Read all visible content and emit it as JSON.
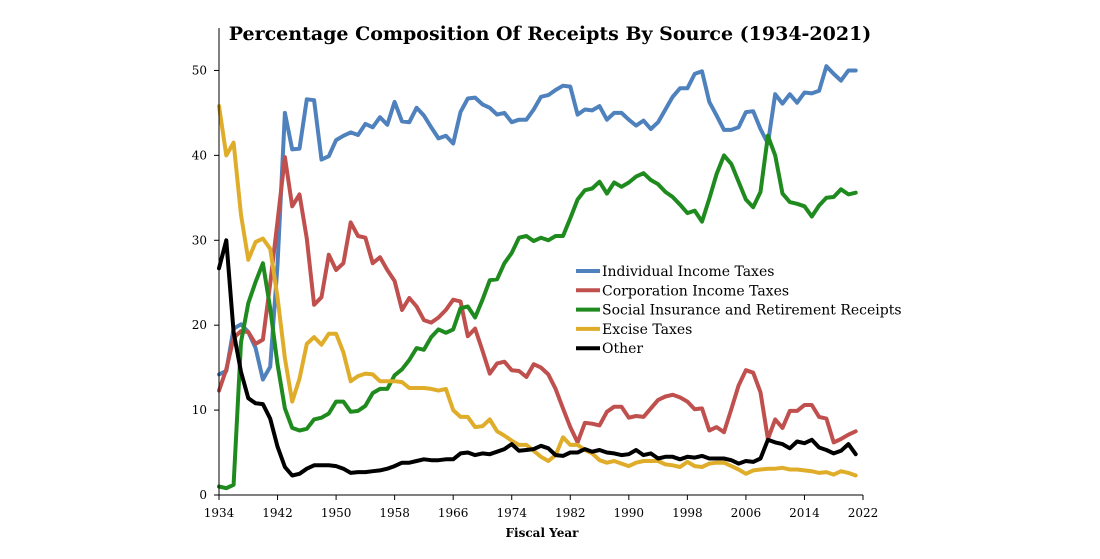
{
  "chart_data": {
    "type": "line",
    "title": "Percentage Composition Of Receipts By Source (1934-2021)",
    "xlabel": "Fiscal Year",
    "ylabel": "",
    "xlim": [
      1934,
      2022
    ],
    "ylim": [
      0,
      55
    ],
    "xticks": [
      1934,
      1942,
      1950,
      1958,
      1966,
      1974,
      1982,
      1990,
      1998,
      2006,
      2014,
      2022
    ],
    "yticks": [
      0,
      10,
      20,
      30,
      40,
      50
    ],
    "grid": false,
    "legend_position": "center-right",
    "series": [
      {
        "name": "Individual Income Taxes",
        "color": "#4F81BD",
        "x": [
          1934,
          1935,
          1936,
          1937,
          1938,
          1939,
          1940,
          1941,
          1942,
          1943,
          1944,
          1945,
          1946,
          1947,
          1948,
          1949,
          1950,
          1951,
          1952,
          1953,
          1954,
          1955,
          1956,
          1957,
          1958,
          1959,
          1960,
          1961,
          1962,
          1963,
          1964,
          1965,
          1966,
          1967,
          1968,
          1969,
          1970,
          1971,
          1972,
          1973,
          1974,
          1975,
          1976,
          1977,
          1978,
          1979,
          1980,
          1981,
          1982,
          1983,
          1984,
          1985,
          1986,
          1987,
          1988,
          1989,
          1990,
          1991,
          1992,
          1993,
          1994,
          1995,
          1996,
          1997,
          1998,
          1999,
          2000,
          2001,
          2002,
          2003,
          2004,
          2005,
          2006,
          2007,
          2008,
          2009,
          2010,
          2011,
          2012,
          2013,
          2014,
          2015,
          2016,
          2017,
          2018,
          2019,
          2020,
          2021
        ],
        "values": [
          14.2,
          14.6,
          19.6,
          20.1,
          19.2,
          17.3,
          13.6,
          15.1,
          27.1,
          45.0,
          40.7,
          40.8,
          46.6,
          46.5,
          39.5,
          39.9,
          41.8,
          42.3,
          42.7,
          42.4,
          43.7,
          43.3,
          44.5,
          43.6,
          46.3,
          44.0,
          43.9,
          45.6,
          44.7,
          43.3,
          42.0,
          42.3,
          41.4,
          45.1,
          46.7,
          46.8,
          46.0,
          45.6,
          44.8,
          45.0,
          43.9,
          44.2,
          44.2,
          45.4,
          46.9,
          47.1,
          47.7,
          48.2,
          48.1,
          44.8,
          45.4,
          45.3,
          45.8,
          44.2,
          45.0,
          45.0,
          44.2,
          43.5,
          44.1,
          43.1,
          43.9,
          45.4,
          46.9,
          47.9,
          47.9,
          49.6,
          49.9,
          46.3,
          44.7,
          43.0,
          43.0,
          43.3,
          45.1,
          45.2,
          43.1,
          41.4,
          47.2,
          46.1,
          47.2,
          46.2,
          47.4,
          47.3,
          47.6,
          50.5,
          49.6,
          48.8,
          50.0,
          50.0
        ]
      },
      {
        "name": "Corporation Income Taxes",
        "color": "#C0504D",
        "x": [
          1934,
          1935,
          1936,
          1937,
          1938,
          1939,
          1940,
          1941,
          1942,
          1943,
          1944,
          1945,
          1946,
          1947,
          1948,
          1949,
          1950,
          1951,
          1952,
          1953,
          1954,
          1955,
          1956,
          1957,
          1958,
          1959,
          1960,
          1961,
          1962,
          1963,
          1964,
          1965,
          1966,
          1967,
          1968,
          1969,
          1970,
          1971,
          1972,
          1973,
          1974,
          1975,
          1976,
          1977,
          1978,
          1979,
          1980,
          1981,
          1982,
          1983,
          1984,
          1985,
          1986,
          1987,
          1988,
          1989,
          1990,
          1991,
          1992,
          1993,
          1994,
          1995,
          1996,
          1997,
          1998,
          1999,
          2000,
          2001,
          2002,
          2003,
          2004,
          2005,
          2006,
          2007,
          2008,
          2009,
          2010,
          2011,
          2012,
          2013,
          2014,
          2015,
          2016,
          2017,
          2018,
          2019,
          2020,
          2021
        ],
        "values": [
          12.3,
          14.8,
          18.5,
          19.3,
          19.2,
          17.8,
          18.3,
          24.9,
          32.2,
          39.8,
          34.0,
          35.4,
          30.2,
          22.4,
          23.3,
          28.3,
          26.5,
          27.3,
          32.1,
          30.5,
          30.3,
          27.3,
          28.0,
          26.5,
          25.2,
          21.8,
          23.2,
          22.2,
          20.6,
          20.3,
          20.9,
          21.8,
          23.0,
          22.8,
          18.7,
          19.6,
          17.0,
          14.3,
          15.5,
          15.7,
          14.7,
          14.6,
          13.9,
          15.4,
          15.0,
          14.2,
          12.5,
          10.2,
          8.0,
          6.2,
          8.5,
          8.4,
          8.2,
          9.8,
          10.4,
          10.4,
          9.1,
          9.3,
          9.2,
          10.2,
          11.2,
          11.6,
          11.8,
          11.5,
          11.0,
          10.1,
          10.2,
          7.6,
          8.0,
          7.4,
          10.1,
          12.9,
          14.7,
          14.4,
          12.1,
          6.6,
          8.9,
          7.9,
          9.9,
          9.9,
          10.6,
          10.6,
          9.2,
          9.0,
          6.2,
          6.6,
          7.1,
          7.5
        ]
      },
      {
        "name": "Social Insurance and Retirement Receipts",
        "color": "#1F8B1F",
        "x": [
          1934,
          1935,
          1936,
          1937,
          1938,
          1939,
          1940,
          1941,
          1942,
          1943,
          1944,
          1945,
          1946,
          1947,
          1948,
          1949,
          1950,
          1951,
          1952,
          1953,
          1954,
          1955,
          1956,
          1957,
          1958,
          1959,
          1960,
          1961,
          1962,
          1963,
          1964,
          1965,
          1966,
          1967,
          1968,
          1969,
          1970,
          1971,
          1972,
          1973,
          1974,
          1975,
          1976,
          1977,
          1978,
          1979,
          1980,
          1981,
          1982,
          1983,
          1984,
          1985,
          1986,
          1987,
          1988,
          1989,
          1990,
          1991,
          1992,
          1993,
          1994,
          1995,
          1996,
          1997,
          1998,
          1999,
          2000,
          2001,
          2002,
          2003,
          2004,
          2005,
          2006,
          2007,
          2008,
          2009,
          2010,
          2011,
          2012,
          2013,
          2014,
          2015,
          2016,
          2017,
          2018,
          2019,
          2020,
          2021
        ],
        "values": [
          1.0,
          0.8,
          1.2,
          18.0,
          22.6,
          25.1,
          27.3,
          22.0,
          15.4,
          10.2,
          7.9,
          7.6,
          7.8,
          8.9,
          9.1,
          9.6,
          11.0,
          11.0,
          9.8,
          9.9,
          10.5,
          12.0,
          12.5,
          12.5,
          14.1,
          14.8,
          15.9,
          17.3,
          17.1,
          18.6,
          19.5,
          19.1,
          19.5,
          22.0,
          22.2,
          20.9,
          23.0,
          25.3,
          25.4,
          27.3,
          28.5,
          30.3,
          30.5,
          29.9,
          30.3,
          30.0,
          30.5,
          30.5,
          32.6,
          34.8,
          35.9,
          36.1,
          36.9,
          35.5,
          36.8,
          36.3,
          36.8,
          37.5,
          37.9,
          37.1,
          36.6,
          35.7,
          35.1,
          34.2,
          33.2,
          33.5,
          32.2,
          34.9,
          37.8,
          40.0,
          39.0,
          36.9,
          34.8,
          33.9,
          35.7,
          42.3,
          40.0,
          35.5,
          34.5,
          34.3,
          34.0,
          32.8,
          34.1,
          35.0,
          35.1,
          36.0,
          35.4,
          35.6
        ]
      },
      {
        "name": "Excise Taxes",
        "color": "#E0AD2A",
        "x": [
          1934,
          1935,
          1936,
          1937,
          1938,
          1939,
          1940,
          1941,
          1942,
          1943,
          1944,
          1945,
          1946,
          1947,
          1948,
          1949,
          1950,
          1951,
          1952,
          1953,
          1954,
          1955,
          1956,
          1957,
          1958,
          1959,
          1960,
          1961,
          1962,
          1963,
          1964,
          1965,
          1966,
          1967,
          1968,
          1969,
          1970,
          1971,
          1972,
          1973,
          1974,
          1975,
          1976,
          1977,
          1978,
          1979,
          1980,
          1981,
          1982,
          1983,
          1984,
          1985,
          1986,
          1987,
          1988,
          1989,
          1990,
          1991,
          1992,
          1993,
          1994,
          1995,
          1996,
          1997,
          1998,
          1999,
          2000,
          2001,
          2002,
          2003,
          2004,
          2005,
          2006,
          2007,
          2008,
          2009,
          2010,
          2011,
          2012,
          2013,
          2014,
          2015,
          2016,
          2017,
          2018,
          2019,
          2020,
          2021
        ],
        "values": [
          45.8,
          40.0,
          41.5,
          33.0,
          27.7,
          29.8,
          30.2,
          29.0,
          23.3,
          16.1,
          11.0,
          13.7,
          17.8,
          18.6,
          17.7,
          19.0,
          19.0,
          16.8,
          13.4,
          14.0,
          14.3,
          14.2,
          13.4,
          13.4,
          13.4,
          13.3,
          12.6,
          12.6,
          12.6,
          12.5,
          12.3,
          12.5,
          10.0,
          9.2,
          9.2,
          8.0,
          8.1,
          8.9,
          7.5,
          7.0,
          6.4,
          5.9,
          5.9,
          5.2,
          4.5,
          4.0,
          4.7,
          6.8,
          5.9,
          5.9,
          5.3,
          4.9,
          4.1,
          3.8,
          4.0,
          3.7,
          3.4,
          3.8,
          4.0,
          4.0,
          4.0,
          3.6,
          3.5,
          3.3,
          3.9,
          3.4,
          3.3,
          3.7,
          3.8,
          3.8,
          3.4,
          3.0,
          2.5,
          2.9,
          3.0,
          3.1,
          3.1,
          3.2,
          3.0,
          3.0,
          2.9,
          2.8,
          2.6,
          2.7,
          2.4,
          2.8,
          2.6,
          2.3
        ]
      },
      {
        "name": "Other",
        "color": "#000000",
        "x": [
          1934,
          1935,
          1936,
          1937,
          1938,
          1939,
          1940,
          1941,
          1942,
          1943,
          1944,
          1945,
          1946,
          1947,
          1948,
          1949,
          1950,
          1951,
          1952,
          1953,
          1954,
          1955,
          1956,
          1957,
          1958,
          1959,
          1960,
          1961,
          1962,
          1963,
          1964,
          1965,
          1966,
          1967,
          1968,
          1969,
          1970,
          1971,
          1972,
          1973,
          1974,
          1975,
          1976,
          1977,
          1978,
          1979,
          1980,
          1981,
          1982,
          1983,
          1984,
          1985,
          1986,
          1987,
          1988,
          1989,
          1990,
          1991,
          1992,
          1993,
          1994,
          1995,
          1996,
          1997,
          1998,
          1999,
          2000,
          2001,
          2002,
          2003,
          2004,
          2005,
          2006,
          2007,
          2008,
          2009,
          2010,
          2011,
          2012,
          2013,
          2014,
          2015,
          2016,
          2017,
          2018,
          2019,
          2020,
          2021
        ],
        "values": [
          26.7,
          30.0,
          19.2,
          14.5,
          11.4,
          10.8,
          10.7,
          9.0,
          5.7,
          3.3,
          2.3,
          2.5,
          3.1,
          3.5,
          3.5,
          3.5,
          3.4,
          3.1,
          2.6,
          2.7,
          2.7,
          2.8,
          2.9,
          3.1,
          3.4,
          3.8,
          3.8,
          4.0,
          4.2,
          4.1,
          4.1,
          4.2,
          4.2,
          4.9,
          5.0,
          4.7,
          4.9,
          4.8,
          5.1,
          5.4,
          6.0,
          5.2,
          5.3,
          5.4,
          5.8,
          5.5,
          4.7,
          4.6,
          5.0,
          5.0,
          5.4,
          5.1,
          5.3,
          5.0,
          4.9,
          4.7,
          4.8,
          5.3,
          4.7,
          4.9,
          4.3,
          4.5,
          4.5,
          4.2,
          4.5,
          4.4,
          4.6,
          4.3,
          4.3,
          4.3,
          4.1,
          3.7,
          4.0,
          3.9,
          4.3,
          6.5,
          6.2,
          6.0,
          5.5,
          6.3,
          6.1,
          6.5,
          5.6,
          5.3,
          4.9,
          5.2,
          6.0,
          4.8
        ]
      }
    ]
  }
}
